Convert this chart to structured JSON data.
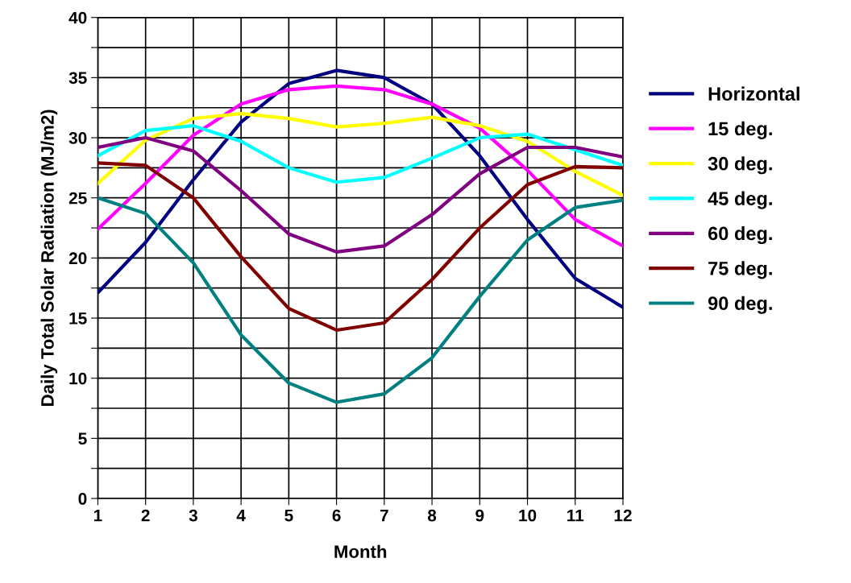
{
  "chart_data": {
    "type": "line",
    "xlabel": "Month",
    "ylabel": "Daily Total Solar Radiation (MJ/m2)",
    "x": [
      1,
      2,
      3,
      4,
      5,
      6,
      7,
      8,
      9,
      10,
      11,
      12
    ],
    "xlim": [
      1,
      12
    ],
    "xticks": [
      1,
      2,
      3,
      4,
      5,
      6,
      7,
      8,
      9,
      10,
      11,
      12
    ],
    "ylim": [
      0,
      40
    ],
    "yticks": [
      0,
      {
        "value": 2.5,
        "label": null
      },
      5,
      {
        "value": 7.5,
        "label": null
      },
      10,
      {
        "value": 12.5,
        "label": null
      },
      15,
      {
        "value": 17.5,
        "label": null
      },
      20,
      {
        "value": 22.5,
        "label": null
      },
      25,
      {
        "value": 27.5,
        "label": null
      },
      30,
      {
        "value": 32.5,
        "label": null
      },
      35,
      {
        "value": 37.5,
        "label": null
      },
      40
    ],
    "grid": true,
    "legend": "right",
    "marker": "none",
    "line_style": "solid",
    "series": [
      {
        "name": "Horizontal",
        "color": "#000080",
        "values": [
          17.1,
          21.3,
          26.5,
          31.3,
          34.5,
          35.6,
          35.0,
          32.8,
          28.5,
          23.2,
          18.3,
          15.9
        ]
      },
      {
        "name": "15 deg.",
        "color": "#ff00ff",
        "values": [
          22.4,
          26.2,
          30.2,
          32.8,
          34.0,
          34.3,
          34.0,
          32.8,
          30.8,
          27.3,
          23.2,
          21.0
        ]
      },
      {
        "name": "30 deg.",
        "color": "#ffff00",
        "values": [
          26.2,
          29.8,
          31.6,
          32.0,
          31.6,
          30.9,
          31.2,
          31.7,
          31.0,
          29.7,
          27.2,
          25.2
        ]
      },
      {
        "name": "45 deg.",
        "color": "#00ffff",
        "values": [
          28.5,
          30.6,
          31.0,
          29.7,
          27.5,
          26.3,
          26.7,
          28.3,
          30.0,
          30.3,
          29.0,
          27.7
        ]
      },
      {
        "name": "60 deg.",
        "color": "#800080",
        "values": [
          29.2,
          30.0,
          28.9,
          25.6,
          22.0,
          20.5,
          21.0,
          23.6,
          27.0,
          29.2,
          29.2,
          28.4
        ]
      },
      {
        "name": "75 deg.",
        "color": "#800000",
        "values": [
          27.9,
          27.7,
          25.0,
          20.1,
          15.8,
          14.0,
          14.6,
          18.2,
          22.5,
          26.1,
          27.6,
          27.5
        ]
      },
      {
        "name": "90 deg.",
        "color": "#008080",
        "values": [
          25.0,
          23.7,
          19.6,
          13.6,
          9.6,
          8.0,
          8.7,
          11.7,
          16.8,
          21.5,
          24.2,
          24.8
        ]
      }
    ]
  }
}
